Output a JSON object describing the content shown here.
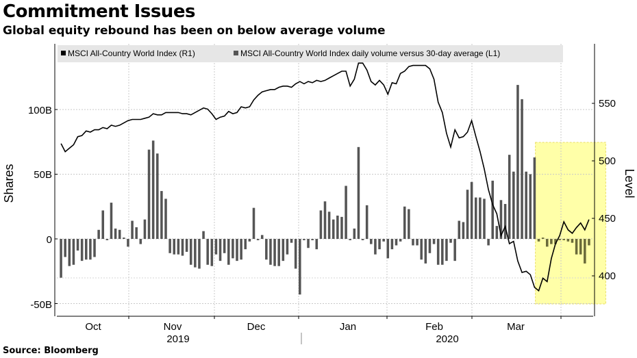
{
  "title": "Commitment Issues",
  "subtitle": "Global equity rebound has been on below average volume",
  "source": "Source: Bloomberg",
  "chart_data": {
    "type": "bar",
    "legend": {
      "placement": "top-left",
      "entries": [
        {
          "label": "MSCI All-Country World Index (R1)",
          "color": "#000000"
        },
        {
          "label": "MSCI All-Country World Index daily volume versus 30-day average (L1)",
          "color": "#555555"
        }
      ]
    },
    "ylabel_left": "Shares",
    "ylabel_right": "Level",
    "yleft_ticks": [
      "-50B",
      "0",
      "50B",
      "100B"
    ],
    "yleft_tick_values": [
      -50,
      0,
      50,
      100
    ],
    "yleft_lim": [
      -60,
      150
    ],
    "yright_ticks": [
      "400",
      "450",
      "500",
      "550"
    ],
    "yright_tick_values": [
      400,
      450,
      500,
      550
    ],
    "yright_lim": [
      368,
      595
    ],
    "x_month_labels": [
      "Oct",
      "Nov",
      "Dec",
      "Jan",
      "Feb",
      "Mar"
    ],
    "x_year_labels": [
      "2019",
      "2020"
    ],
    "grid": true,
    "highlight": {
      "from_index": 114,
      "to_index": 127,
      "color": "#ffff99"
    },
    "volume_series": {
      "name": "MSCI All-Country World Index daily volume versus 30-day average (L1)",
      "unit": "B",
      "values": [
        -30,
        -14,
        -21,
        -20,
        -9,
        -17,
        -16,
        -16,
        -14,
        7,
        22,
        -1,
        28,
        8,
        7,
        1,
        -6,
        14,
        9,
        -4,
        15,
        69,
        76,
        66,
        37,
        31,
        -11,
        -12,
        -12,
        -13,
        -10,
        -20,
        -22,
        -23,
        6,
        -20,
        -21,
        -12,
        -17,
        -11,
        -20,
        -15,
        -17,
        -16,
        -8,
        -2,
        24,
        -1,
        3,
        -16,
        -20,
        -21,
        -21,
        -17,
        -12,
        -3,
        -23,
        -43,
        -1,
        -7,
        -1,
        -8,
        22,
        29,
        21,
        15,
        18,
        17,
        41,
        -1,
        8,
        71,
        -1,
        26,
        -4,
        -12,
        -8,
        -2,
        -15,
        -8,
        -5,
        -2,
        25,
        23,
        -5,
        -5,
        -16,
        -19,
        -11,
        -4,
        -20,
        -20,
        -17,
        -3,
        -17,
        14,
        13,
        38,
        44,
        32,
        32,
        31,
        -5,
        45,
        10,
        30,
        27,
        65,
        52,
        119,
        108,
        52,
        50,
        63,
        -2,
        1,
        -6,
        -4,
        -4,
        -1,
        -1,
        -2,
        -3,
        -12,
        -12,
        -19,
        -5
      ]
    },
    "index_series": {
      "name": "MSCI All-Country World Index (R1)",
      "values": [
        515,
        508,
        511,
        514,
        521,
        522,
        526,
        525,
        527,
        527,
        529,
        528,
        531,
        530,
        531,
        533,
        535,
        536,
        536,
        536,
        537,
        538,
        541,
        540,
        540,
        542,
        542,
        542,
        542,
        541,
        541,
        540,
        542,
        544,
        546,
        545,
        541,
        536,
        538,
        539,
        543,
        541,
        542,
        547,
        546,
        547,
        553,
        557,
        560,
        561,
        562,
        562,
        564,
        565,
        565,
        564,
        567,
        569,
        567,
        569,
        568,
        570,
        569,
        570,
        572,
        574,
        576,
        578,
        578,
        565,
        571,
        585,
        585,
        579,
        569,
        566,
        570,
        566,
        558,
        568,
        567,
        576,
        578,
        582,
        583,
        583,
        583,
        583,
        580,
        571,
        551,
        542,
        524,
        512,
        527,
        520,
        521,
        525,
        535,
        521,
        508,
        493,
        475,
        462,
        454,
        435,
        443,
        428,
        430,
        413,
        403,
        404,
        401,
        390,
        387,
        398,
        395,
        415,
        428,
        435,
        447,
        440,
        437,
        442,
        446,
        440,
        449
      ]
    }
  }
}
